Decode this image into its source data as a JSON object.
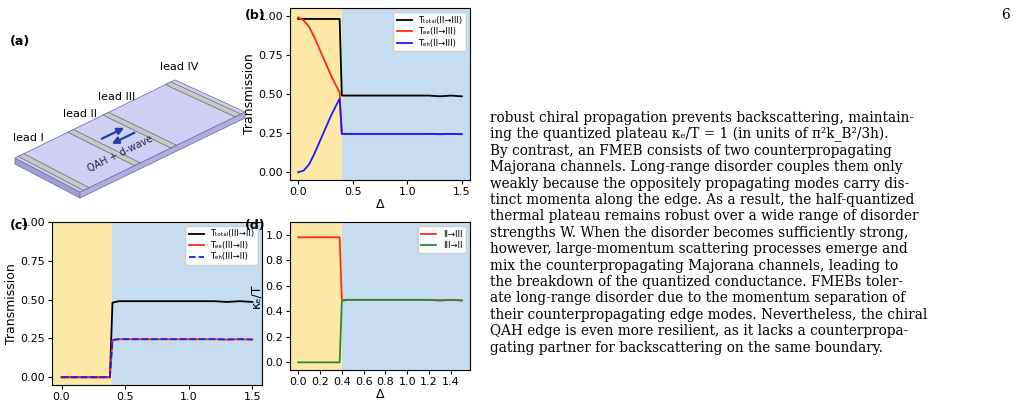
{
  "page_number": "6",
  "schematic": {
    "label": "(a)",
    "leads": [
      "lead I",
      "lead II",
      "lead III",
      "lead IV"
    ],
    "sample": "QAH + d-wave"
  },
  "chart_data": [
    {
      "type": "line",
      "label": "(b)",
      "xlabel": "Δ",
      "ylabel": "Transmission",
      "xlim": [
        -0.075,
        1.575
      ],
      "ylim": [
        -0.05,
        1.05
      ],
      "xticks": [
        {
          "value": 0.0,
          "label": "0.0"
        },
        {
          "value": 0.5,
          "label": "0.5"
        },
        {
          "value": 1.0,
          "label": "1.0"
        },
        {
          "value": 1.5,
          "label": "1.5"
        }
      ],
      "yticks": [
        {
          "value": 0.0,
          "label": "0.00"
        },
        {
          "value": 0.25,
          "label": "0.25"
        },
        {
          "value": 0.5,
          "label": "0.50"
        },
        {
          "value": 0.75,
          "label": "0.75"
        },
        {
          "value": 1.0,
          "label": "1.00"
        }
      ],
      "legend": "upper right",
      "shading": [
        {
          "from": -0.075,
          "to": 0.4,
          "color": "#fde8a8"
        },
        {
          "from": 0.4,
          "to": 1.575,
          "color": "#c6dcef"
        }
      ],
      "x": [
        0,
        0.05,
        0.1,
        0.15,
        0.2,
        0.25,
        0.3,
        0.35,
        0.38,
        0.4,
        0.45,
        0.5,
        0.6,
        0.7,
        0.8,
        0.9,
        1.0,
        1.1,
        1.2,
        1.3,
        1.4,
        1.5
      ],
      "series": [
        {
          "name": "Tₜₒₜₐₗ(II→III)",
          "color": "#000000",
          "line_style": "solid",
          "values": [
            0.98,
            0.98,
            0.98,
            0.98,
            0.98,
            0.98,
            0.98,
            0.98,
            0.98,
            0.49,
            0.49,
            0.49,
            0.49,
            0.49,
            0.49,
            0.49,
            0.49,
            0.49,
            0.49,
            0.485,
            0.49,
            0.485
          ]
        },
        {
          "name": "Tₑₑ(II→III)",
          "color": "#ff2a1a",
          "line_style": "solid",
          "values": [
            0.99,
            0.97,
            0.93,
            0.86,
            0.78,
            0.7,
            0.62,
            0.55,
            0.51,
            0.245,
            0.245,
            0.245,
            0.245,
            0.245,
            0.245,
            0.245,
            0.245,
            0.245,
            0.245,
            0.243,
            0.245,
            0.243
          ]
        },
        {
          "name": "Tₑₕ(II→III)",
          "color": "#1a1aff",
          "line_style": "solid",
          "values": [
            0.0,
            0.01,
            0.05,
            0.12,
            0.2,
            0.28,
            0.36,
            0.43,
            0.47,
            0.245,
            0.245,
            0.245,
            0.245,
            0.245,
            0.245,
            0.245,
            0.245,
            0.245,
            0.245,
            0.243,
            0.245,
            0.243
          ]
        }
      ]
    },
    {
      "type": "line",
      "label": "(c)",
      "ylabel": "Transmission",
      "xlim": [
        -0.075,
        1.575
      ],
      "ylim": [
        -0.05,
        1.0
      ],
      "xticks": [
        {
          "value": 0.0,
          "label": "0.0"
        },
        {
          "value": 0.5,
          "label": "0.5"
        },
        {
          "value": 1.0,
          "label": "1.0"
        },
        {
          "value": 1.5,
          "label": "1.5"
        }
      ],
      "yticks": [
        {
          "value": 0.0,
          "label": "0.00"
        },
        {
          "value": 0.25,
          "label": "0.25"
        },
        {
          "value": 0.5,
          "label": "0.50"
        },
        {
          "value": 0.75,
          "label": "0.75"
        },
        {
          "value": 1.0,
          "label": "1.00"
        }
      ],
      "legend": "upper right",
      "shading": [
        {
          "from": -0.075,
          "to": 0.4,
          "color": "#fde8a8"
        },
        {
          "from": 0.4,
          "to": 1.575,
          "color": "#c6dcef"
        }
      ],
      "x": [
        0,
        0.05,
        0.1,
        0.15,
        0.2,
        0.25,
        0.3,
        0.35,
        0.38,
        0.4,
        0.45,
        0.5,
        0.6,
        0.7,
        0.8,
        0.9,
        1.0,
        1.1,
        1.2,
        1.3,
        1.4,
        1.5
      ],
      "series": [
        {
          "name": "Tₜₒₜₐₗ(III→II)",
          "color": "#000000",
          "line_style": "solid",
          "values": [
            0,
            0,
            0,
            0,
            0,
            0,
            0,
            0,
            0,
            0.48,
            0.49,
            0.49,
            0.49,
            0.49,
            0.49,
            0.49,
            0.49,
            0.49,
            0.49,
            0.485,
            0.49,
            0.485
          ]
        },
        {
          "name": "Tₑₑ(III→II)",
          "color": "#ff2a1a",
          "line_style": "solid",
          "values": [
            0,
            0,
            0,
            0,
            0,
            0,
            0,
            0,
            0,
            0.24,
            0.245,
            0.245,
            0.245,
            0.245,
            0.245,
            0.245,
            0.245,
            0.245,
            0.245,
            0.243,
            0.245,
            0.243
          ]
        },
        {
          "name": "Tₑₕ(III→II)",
          "color": "#1a1aff",
          "line_style": "dashed",
          "values": [
            0,
            0,
            0,
            0,
            0,
            0,
            0,
            0,
            0,
            0.24,
            0.245,
            0.245,
            0.245,
            0.245,
            0.245,
            0.245,
            0.245,
            0.245,
            0.245,
            0.243,
            0.245,
            0.243
          ]
        }
      ]
    },
    {
      "type": "line",
      "label": "(d)",
      "xlabel": "Δ",
      "ylabel": "κₑ/T",
      "xlim": [
        -0.075,
        1.575
      ],
      "ylim": [
        -0.06,
        1.1
      ],
      "xticks": [
        {
          "value": 0.0,
          "label": "0.0"
        },
        {
          "value": 0.2,
          "label": "0.2"
        },
        {
          "value": 0.4,
          "label": "0.4"
        },
        {
          "value": 0.6,
          "label": "0.6"
        },
        {
          "value": 0.8,
          "label": "0.8"
        },
        {
          "value": 1.0,
          "label": "1.0"
        },
        {
          "value": 1.2,
          "label": "1.2"
        },
        {
          "value": 1.4,
          "label": "1.4"
        }
      ],
      "yticks": [
        {
          "value": 0.0,
          "label": "0.0"
        },
        {
          "value": 0.2,
          "label": "0.2"
        },
        {
          "value": 0.4,
          "label": "0.4"
        },
        {
          "value": 0.6,
          "label": "0.6"
        },
        {
          "value": 0.8,
          "label": "0.8"
        },
        {
          "value": 1.0,
          "label": "1.0"
        }
      ],
      "legend": "upper right",
      "shading": [
        {
          "from": -0.075,
          "to": 0.4,
          "color": "#fde8a8"
        },
        {
          "from": 0.4,
          "to": 1.575,
          "color": "#c6dcef"
        }
      ],
      "x": [
        0,
        0.05,
        0.1,
        0.15,
        0.2,
        0.25,
        0.3,
        0.35,
        0.38,
        0.4,
        0.45,
        0.5,
        0.6,
        0.7,
        0.8,
        0.9,
        1.0,
        1.1,
        1.2,
        1.3,
        1.4,
        1.5
      ],
      "series": [
        {
          "name": "II→III",
          "color": "#ff2a1a",
          "line_style": "solid",
          "values": [
            0.98,
            0.98,
            0.98,
            0.98,
            0.98,
            0.98,
            0.98,
            0.98,
            0.98,
            0.49,
            0.49,
            0.49,
            0.49,
            0.49,
            0.49,
            0.49,
            0.49,
            0.49,
            0.49,
            0.485,
            0.49,
            0.485
          ]
        },
        {
          "name": "III→II",
          "color": "#2e8b2e",
          "line_style": "solid",
          "values": [
            0,
            0,
            0,
            0,
            0,
            0,
            0,
            0,
            0,
            0.48,
            0.49,
            0.49,
            0.49,
            0.49,
            0.49,
            0.49,
            0.49,
            0.49,
            0.49,
            0.485,
            0.49,
            0.485
          ]
        }
      ]
    }
  ],
  "paragraph": [
    "robust chiral propagation prevents backscattering, maintain-",
    "ing the quantized plateau κₑ/T = 1 (in units of π²k_B²/3h).",
    "By contrast, an FMEB consists of two counterpropagating",
    "Majorana channels. Long-range disorder couples them only",
    "weakly because the oppositely propagating modes carry dis-",
    "tinct momenta along the edge. As a result, the half-quantized",
    "thermal plateau remains robust over a wide range of disorder",
    "strengths W. When the disorder becomes sufficiently strong,",
    "however, large-momentum scattering processes emerge and",
    "mix the counterpropagating Majorana channels, leading to",
    "the breakdown of the quantized conductance. FMEBs toler-",
    "ate long-range disorder due to the momentum separation of",
    "their counterpropagating edge modes. Nevertheless, the chiral",
    "QAH edge is even more resilient, as it lacks a counterpropa-",
    "gating partner for backscattering on the same boundary."
  ]
}
